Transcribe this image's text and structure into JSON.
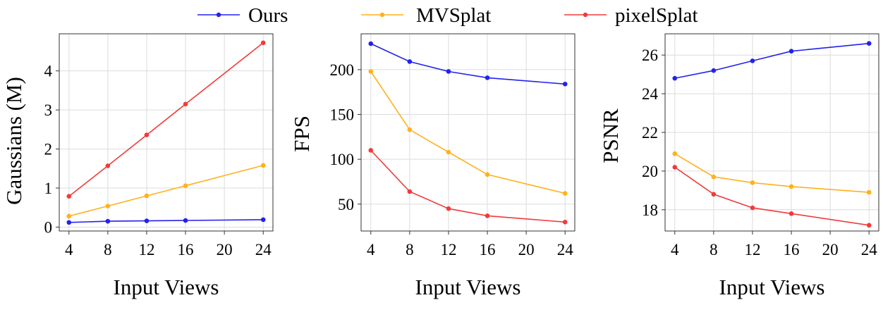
{
  "legend": [
    {
      "label": "Ours",
      "color": "#2222ee"
    },
    {
      "label": "MVSplat",
      "color": "#ffb11c"
    },
    {
      "label": "pixelSplat",
      "color": "#f23a3a"
    }
  ],
  "chart_data": [
    {
      "type": "line",
      "xlabel": "Input Views",
      "ylabel": "Gaussians  (M)",
      "x": [
        4,
        8,
        12,
        16,
        24
      ],
      "xticks": [
        4,
        8,
        12,
        16,
        20,
        24
      ],
      "xlim": [
        3,
        25
      ],
      "yticks": [
        0,
        1,
        2,
        3,
        4
      ],
      "ylim": [
        -0.1,
        4.95
      ],
      "grid": true,
      "series": [
        {
          "name": "Ours",
          "color": "#2222ee",
          "values": [
            0.12,
            0.15,
            0.16,
            0.17,
            0.19
          ]
        },
        {
          "name": "MVSplat",
          "color": "#ffb11c",
          "values": [
            0.28,
            0.54,
            0.8,
            1.06,
            1.58
          ]
        },
        {
          "name": "pixelSplat",
          "color": "#f23a3a",
          "values": [
            0.79,
            1.57,
            2.36,
            3.15,
            4.72
          ]
        }
      ]
    },
    {
      "type": "line",
      "xlabel": "Input Views",
      "ylabel": "FPS",
      "x": [
        4,
        8,
        12,
        16,
        24
      ],
      "xticks": [
        4,
        8,
        12,
        16,
        20,
        24
      ],
      "xlim": [
        3,
        25
      ],
      "yticks": [
        50,
        100,
        150,
        200
      ],
      "ylim": [
        20,
        240
      ],
      "grid": true,
      "series": [
        {
          "name": "Ours",
          "color": "#2222ee",
          "values": [
            229,
            209,
            198,
            191,
            184
          ]
        },
        {
          "name": "MVSplat",
          "color": "#ffb11c",
          "values": [
            198,
            133,
            108,
            83,
            62
          ]
        },
        {
          "name": "pixelSplat",
          "color": "#f23a3a",
          "values": [
            110,
            64,
            45,
            37,
            30
          ]
        }
      ]
    },
    {
      "type": "line",
      "xlabel": "Input Views",
      "ylabel": "PSNR",
      "x": [
        4,
        8,
        12,
        16,
        24
      ],
      "xticks": [
        4,
        8,
        12,
        16,
        20,
        24
      ],
      "xlim": [
        3,
        25
      ],
      "yticks": [
        18,
        20,
        22,
        24,
        26
      ],
      "ylim": [
        16.9,
        27.1
      ],
      "grid": true,
      "series": [
        {
          "name": "Ours",
          "color": "#2222ee",
          "values": [
            24.8,
            25.2,
            25.7,
            26.2,
            26.6
          ]
        },
        {
          "name": "MVSplat",
          "color": "#ffb11c",
          "values": [
            20.9,
            19.7,
            19.4,
            19.2,
            18.9
          ]
        },
        {
          "name": "pixelSplat",
          "color": "#f23a3a",
          "values": [
            20.2,
            18.8,
            18.1,
            17.8,
            17.2
          ]
        }
      ]
    }
  ]
}
